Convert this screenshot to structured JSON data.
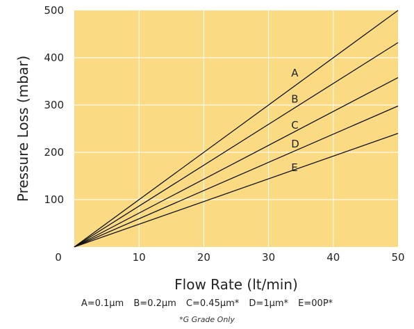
{
  "chart_data": {
    "type": "line",
    "xlabel": "Flow Rate (lt/min)",
    "ylabel": "Pressure Loss  (mbar)",
    "xlim": [
      0,
      50
    ],
    "ylim": [
      0,
      500
    ],
    "x_ticks": [
      "0",
      "10",
      "20",
      "30",
      "40",
      "50"
    ],
    "y_ticks": [
      "100",
      "200",
      "300",
      "400",
      "500"
    ],
    "grid": true,
    "background_color": "#fadb84",
    "line_color": "#111111",
    "series": [
      {
        "name": "A",
        "x": [
          0,
          50
        ],
        "y": [
          0,
          500
        ],
        "label_at": [
          33.5,
          360
        ]
      },
      {
        "name": "B",
        "x": [
          0,
          50
        ],
        "y": [
          0,
          432
        ],
        "label_at": [
          33.5,
          305
        ]
      },
      {
        "name": "C",
        "x": [
          0,
          50
        ],
        "y": [
          0,
          358
        ],
        "label_at": [
          33.5,
          250
        ]
      },
      {
        "name": "D",
        "x": [
          0,
          50
        ],
        "y": [
          0,
          298
        ],
        "label_at": [
          33.5,
          210
        ]
      },
      {
        "name": "E",
        "x": [
          0,
          50
        ],
        "y": [
          0,
          240
        ],
        "label_at": [
          33.5,
          160
        ]
      }
    ]
  },
  "legend": {
    "items": [
      "A=0.1µm",
      "B=0.2µm",
      "C=0.45µm*",
      "D=1µm*",
      "E=00P*"
    ],
    "footnote": "*G Grade Only"
  }
}
